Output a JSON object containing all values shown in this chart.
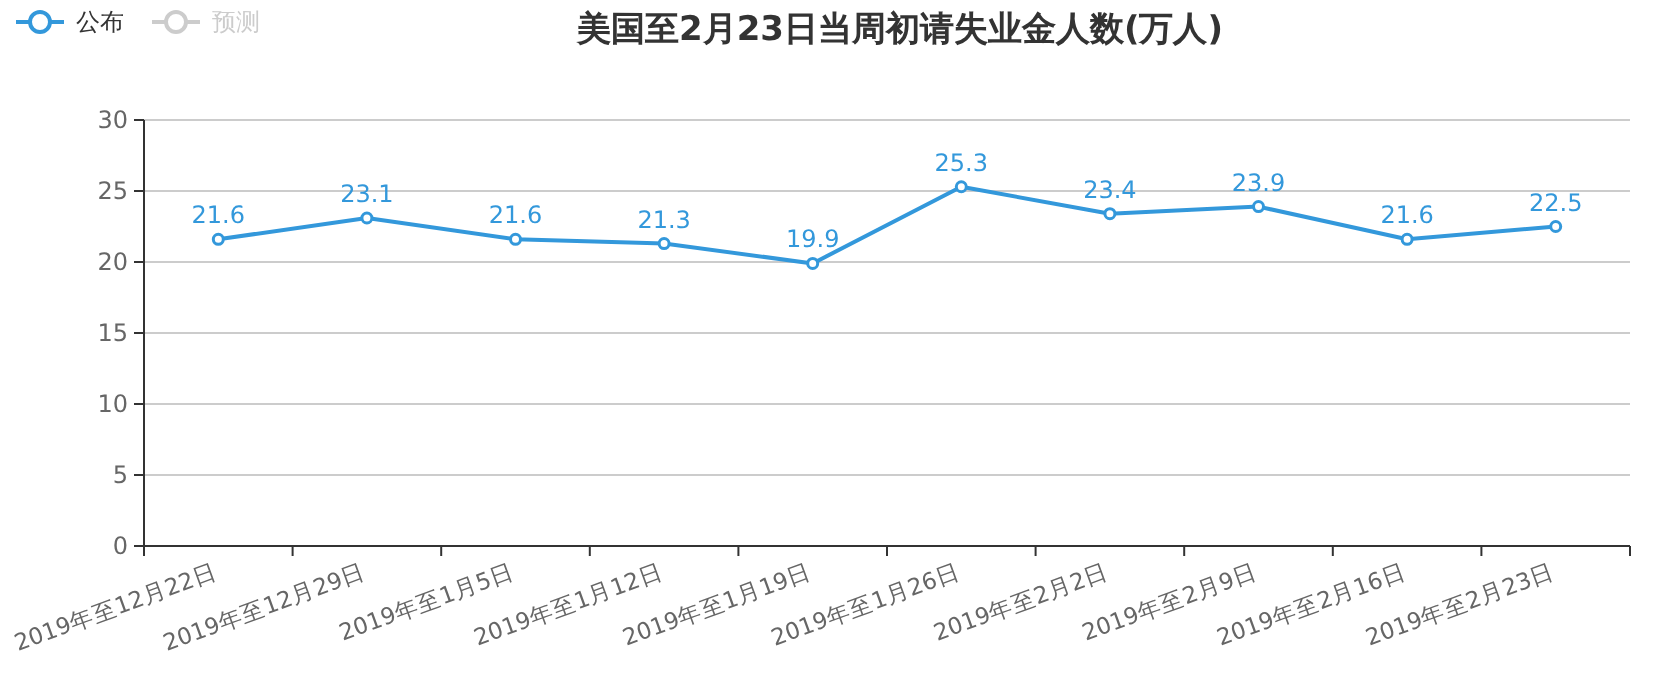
{
  "chart_data": {
    "type": "line",
    "title": "美国至2月23日当周初请失业金人数(万人)",
    "categories": [
      "2019年至12月22日",
      "2019年至12月29日",
      "2019年至1月5日",
      "2019年至1月12日",
      "2019年至1月19日",
      "2019年至1月26日",
      "2019年至2月2日",
      "2019年至2月9日",
      "2019年至2月16日",
      "2019年至2月23日"
    ],
    "series": [
      {
        "name": "公布",
        "color": "#3398db",
        "values": [
          21.6,
          23.1,
          21.6,
          21.3,
          19.9,
          25.3,
          23.4,
          23.9,
          21.6,
          22.5
        ]
      },
      {
        "name": "预测",
        "color": "#cccccc",
        "values": [
          null,
          null,
          null,
          null,
          null,
          null,
          null,
          null,
          null,
          null
        ]
      }
    ],
    "ylim": [
      0,
      30
    ],
    "yticks": [
      0,
      5,
      10,
      15,
      20,
      25,
      30
    ],
    "grid": "y",
    "legend": "top left",
    "marker": "circle",
    "data_labels": true
  }
}
